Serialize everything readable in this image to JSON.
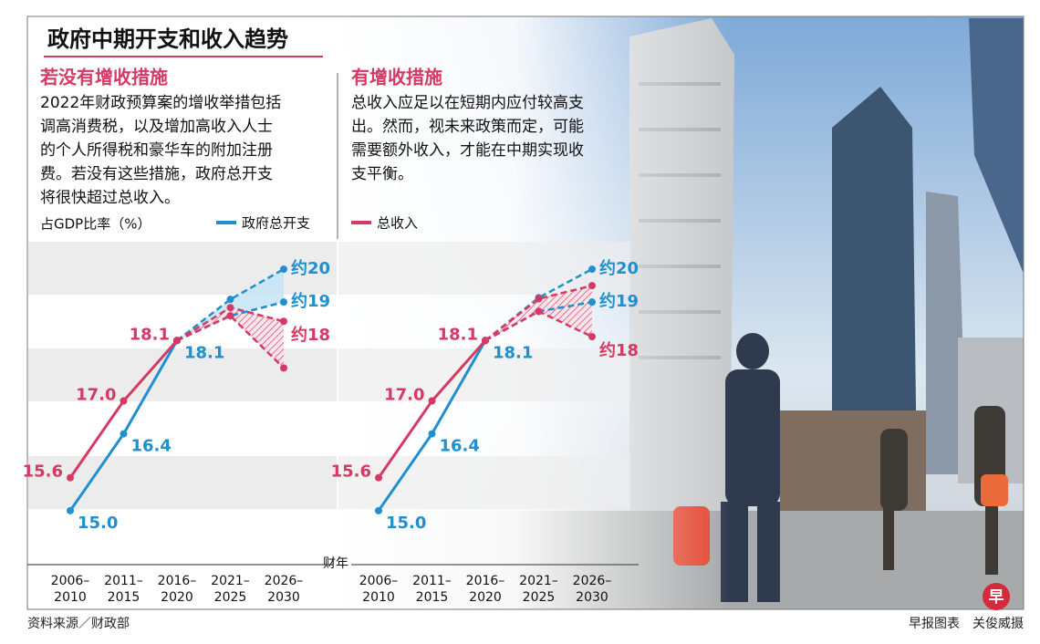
{
  "header": {
    "title": "政府中期开支和收入趋势",
    "source": "资料来源／财政部",
    "credit": "早报图表　关俊威摄",
    "logo": "早"
  },
  "chart_data": [
    {
      "type": "line",
      "heading": "若没有增收措施",
      "text": [
        "2022年财政预算案的增收举措包括",
        "调高消费税，以及增加高收入人士",
        "的个人所得税和豪华车的附加注册",
        "费。若没有这些措施，政府总开支",
        "将很快超过总收入。"
      ],
      "ylabel": "占GDP比率（%）",
      "xlabel": "财年",
      "categories": [
        [
          "2006–",
          "2010"
        ],
        [
          "2011–",
          "2015"
        ],
        [
          "2016–",
          "2020"
        ],
        [
          "2021–",
          "2025"
        ],
        [
          "2026–",
          "2030"
        ]
      ],
      "ylim": [
        14,
        19.9
      ],
      "series": [
        {
          "name": "政府总开支",
          "color": "#1f8fd0",
          "values": [
            15.0,
            16.4,
            18.1,
            null,
            null
          ],
          "value_labels": [
            "15.0",
            "16.4",
            "18.1",
            null,
            null
          ]
        },
        {
          "name": "总收入",
          "color": "#d43a63",
          "values": [
            15.6,
            17.0,
            18.1,
            null,
            null
          ],
          "value_labels": [
            "15.6",
            "17.0",
            "18.1",
            null,
            null
          ]
        },
        {
          "color": "#1f8fd0",
          "dashed": true,
          "area": "solid",
          "values": [
            null,
            null,
            18.1,
            18.85,
            19.4
          ],
          "value_labels": [
            null,
            null,
            null,
            null,
            "约20"
          ]
        },
        {
          "color": "#1f8fd0",
          "dashed": true,
          "values": [
            null,
            null,
            18.1,
            18.55,
            18.8
          ],
          "value_labels": [
            null,
            null,
            null,
            null,
            "约19"
          ]
        },
        {
          "color": "#d43a63",
          "dashed": true,
          "area": "hatch",
          "values": [
            null,
            null,
            18.1,
            18.7,
            18.45
          ],
          "value_labels": [
            null,
            null,
            null,
            null,
            "约18"
          ]
        },
        {
          "color": "#d43a63",
          "dashed": true,
          "values": [
            null,
            null,
            18.1,
            18.55,
            17.6
          ]
        }
      ]
    },
    {
      "type": "line",
      "heading": "有增收措施",
      "text": [
        "总收入应足以在短期内应付较高支",
        "出。然而，视未来政策而定，可能",
        "需要额外收入，才能在中期实现收",
        "支平衡。"
      ],
      "categories": [
        [
          "2006–",
          "2010"
        ],
        [
          "2011–",
          "2015"
        ],
        [
          "2016–",
          "2020"
        ],
        [
          "2021–",
          "2025"
        ],
        [
          "2026–",
          "2030"
        ]
      ],
      "ylim": [
        14,
        19.9
      ],
      "series": [
        {
          "color": "#1f8fd0",
          "values": [
            15.0,
            16.4,
            18.1,
            null,
            null
          ],
          "value_labels": [
            "15.0",
            "16.4",
            "18.1",
            null,
            null
          ]
        },
        {
          "color": "#d43a63",
          "values": [
            15.6,
            17.0,
            18.1,
            null,
            null
          ],
          "value_labels": [
            "15.6",
            "17.0",
            "18.1",
            null,
            null
          ]
        },
        {
          "color": "#1f8fd0",
          "dashed": true,
          "values": [
            null,
            null,
            18.1,
            18.88,
            19.4
          ],
          "value_labels": [
            null,
            null,
            null,
            null,
            "约20"
          ]
        },
        {
          "color": "#1f8fd0",
          "dashed": true,
          "values": [
            null,
            null,
            18.1,
            18.63,
            18.8
          ],
          "value_labels": [
            null,
            null,
            null,
            null,
            "约19"
          ]
        },
        {
          "color": "#d43a63",
          "dashed": true,
          "area": "hatch",
          "values": [
            null,
            null,
            18.1,
            18.86,
            19.1
          ]
        },
        {
          "color": "#d43a63",
          "dashed": true,
          "values": [
            null,
            null,
            18.1,
            18.63,
            18.17
          ],
          "value_labels": [
            null,
            null,
            null,
            null,
            "约18"
          ]
        }
      ]
    }
  ]
}
